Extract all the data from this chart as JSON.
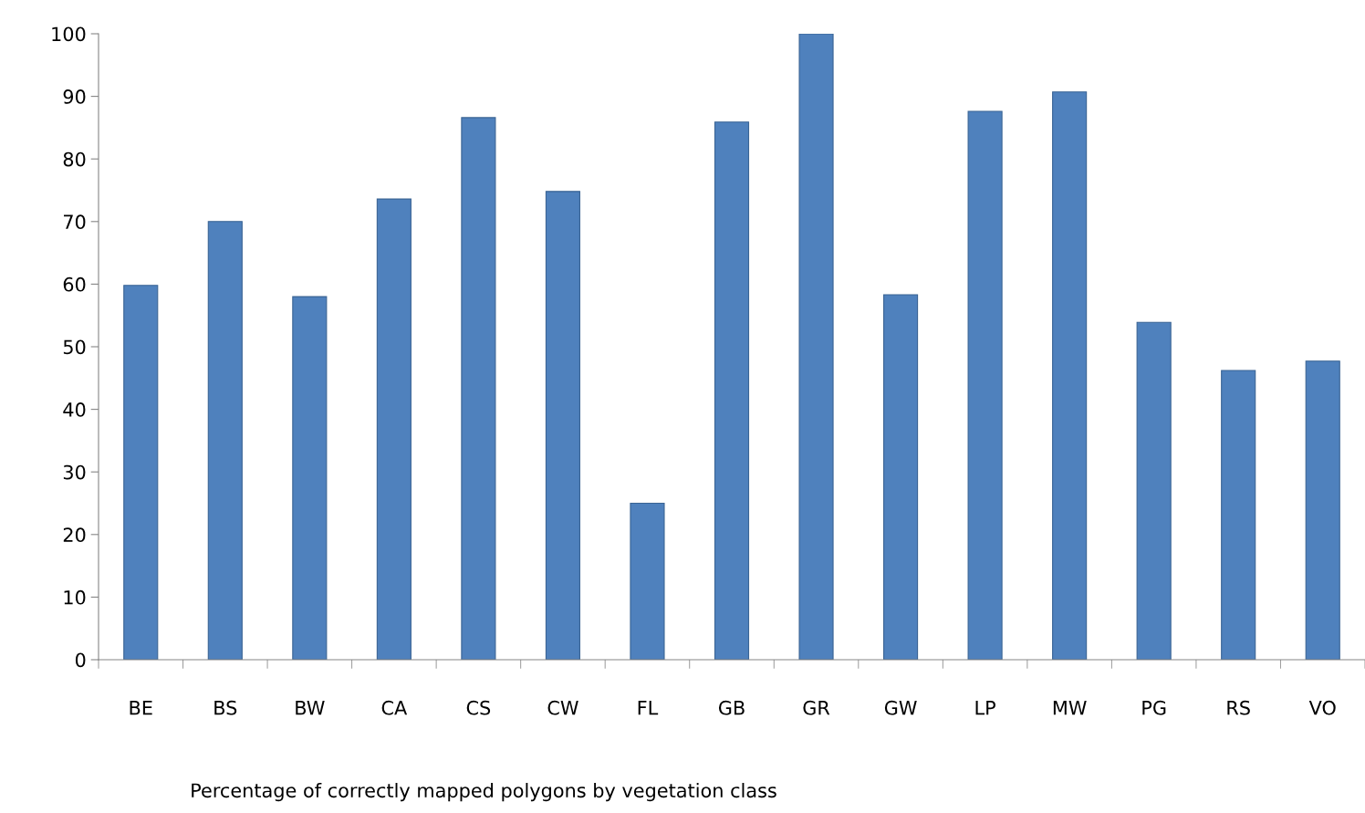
{
  "chart_data": {
    "type": "bar",
    "xlabel": "Percentage of correctly mapped polygons by vegetation class",
    "categories": [
      "BE",
      "BS",
      "BW",
      "CA",
      "CS",
      "CW",
      "FL",
      "GB",
      "GR",
      "GW",
      "LP",
      "MW",
      "PG",
      "RS",
      "VO"
    ],
    "values": [
      59.8,
      70,
      58,
      73.6,
      86.6,
      74.8,
      25,
      85.9,
      100,
      58.3,
      87.6,
      90.7,
      53.9,
      46.2,
      47.7
    ],
    "color": "#4f81bd",
    "ylim": [
      0,
      100
    ],
    "yticks": [
      0,
      10,
      20,
      30,
      40,
      50,
      60,
      70,
      80,
      90,
      100
    ],
    "grid": false,
    "legend": false
  }
}
